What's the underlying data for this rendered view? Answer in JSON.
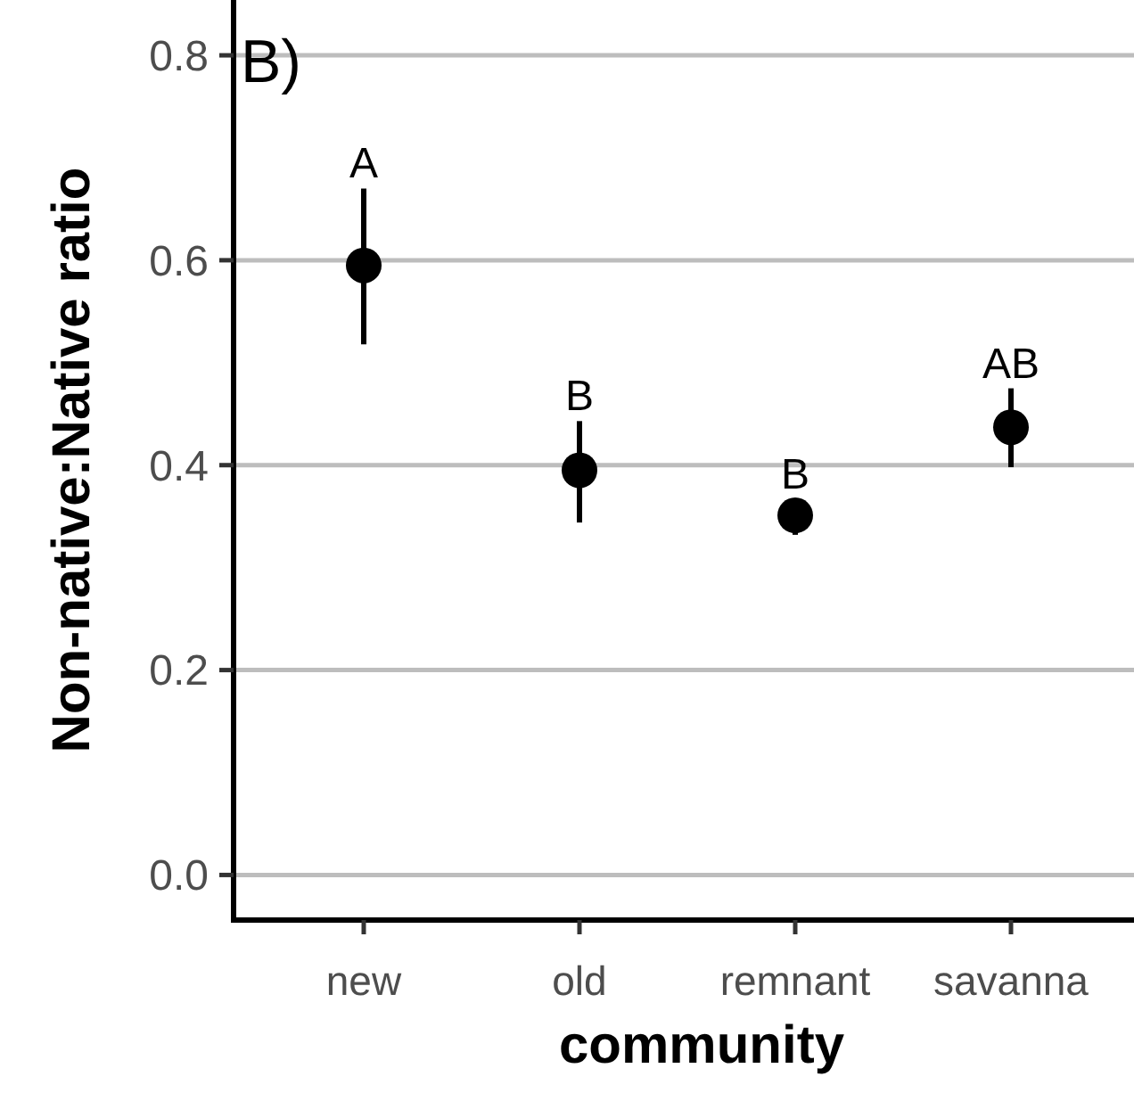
{
  "chart_data": {
    "type": "scatter",
    "title": "B)",
    "xlabel": "community",
    "ylabel": "Non-native:Native ratio",
    "categories": [
      "new",
      "old",
      "remnant",
      "savanna"
    ],
    "series": [
      {
        "color": "#000000",
        "values": [
          0.595,
          0.395,
          0.351,
          0.437
        ],
        "errors": [
          [
            0.518,
            0.67
          ],
          [
            0.344,
            0.443
          ],
          [
            0.332,
            0.367
          ],
          [
            0.398,
            0.475
          ]
        ]
      }
    ],
    "marker": "circle",
    "annotations": [
      {
        "text": "A",
        "x": "new",
        "y": 0.67
      },
      {
        "text": "B",
        "x": "old",
        "y": 0.443
      },
      {
        "text": "B",
        "x": "remnant",
        "y": 0.367
      },
      {
        "text": "AB",
        "x": "savanna",
        "y": 0.475
      }
    ],
    "ylim": [
      -0.044,
      0.854
    ],
    "yticks": [
      {
        "value": 0,
        "label": "0.0"
      },
      {
        "value": 0.2,
        "label": "0.2"
      },
      {
        "value": 0.4,
        "label": "0.4"
      },
      {
        "value": 0.6,
        "label": "0.6"
      },
      {
        "value": 0.8,
        "label": "0.8"
      }
    ],
    "grid": "y"
  }
}
